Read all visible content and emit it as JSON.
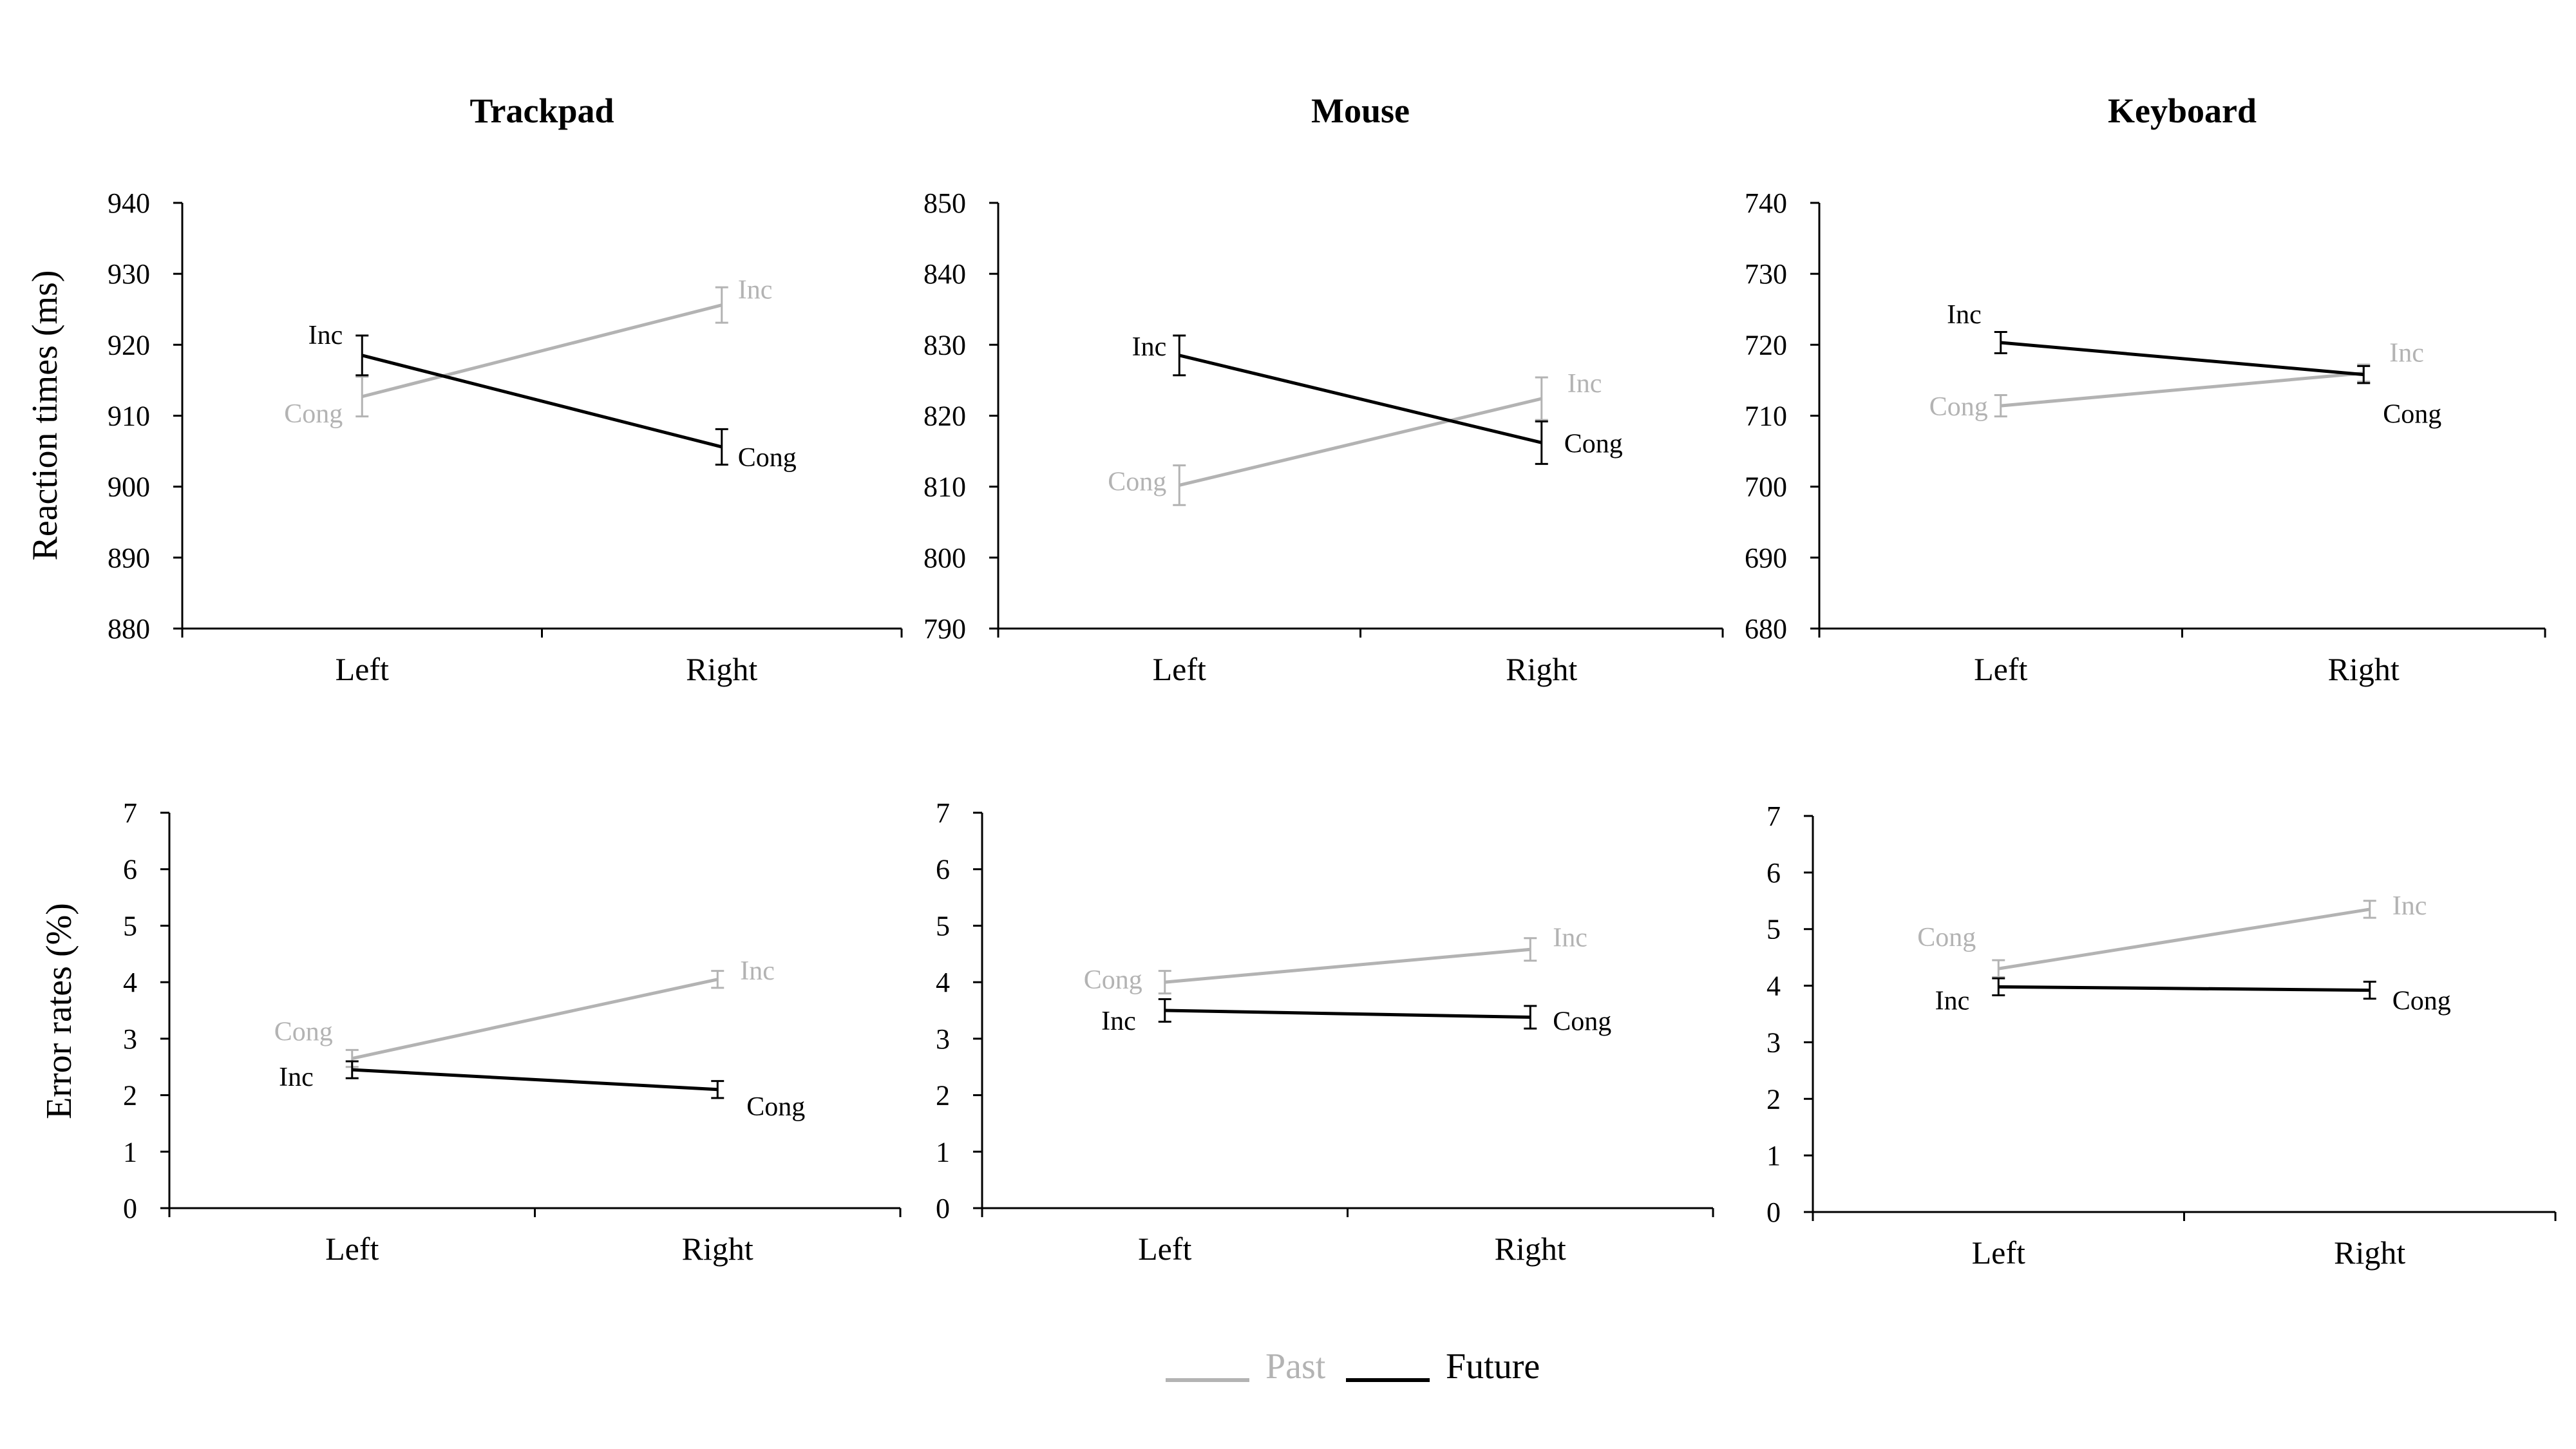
{
  "colors": {
    "past": "#b3b3b3",
    "future": "#000000",
    "axis": "#000000"
  },
  "legend": [
    {
      "name": "Past",
      "color": "#b3b3b3"
    },
    {
      "name": "Future",
      "color": "#000000"
    }
  ],
  "row_labels": [
    "Reaction times (ms)",
    "Error rates (%)"
  ],
  "chart_data": [
    {
      "type": "line",
      "title": "Trackpad",
      "ylabel": "Reaction times (ms)",
      "categories": [
        "Left",
        "Right"
      ],
      "ylim": [
        880,
        940
      ],
      "yticks": [
        880,
        890,
        900,
        910,
        920,
        930,
        940
      ],
      "series": [
        {
          "name": "Past",
          "values": [
            912.7,
            925.6
          ],
          "errors": [
            2.8,
            2.5
          ],
          "point_labels": [
            "Cong",
            "Inc"
          ]
        },
        {
          "name": "Future",
          "values": [
            918.5,
            905.6
          ],
          "errors": [
            2.8,
            2.5
          ],
          "point_labels": [
            "Inc",
            "Cong"
          ]
        }
      ]
    },
    {
      "type": "line",
      "title": "Mouse",
      "ylabel": "",
      "categories": [
        "Left",
        "Right"
      ],
      "ylim": [
        790,
        850
      ],
      "yticks": [
        790,
        800,
        810,
        820,
        830,
        840,
        850
      ],
      "series": [
        {
          "name": "Past",
          "values": [
            810.2,
            822.4
          ],
          "errors": [
            2.8,
            3.0
          ],
          "point_labels": [
            "Cong",
            "Inc"
          ]
        },
        {
          "name": "Future",
          "values": [
            828.5,
            816.2
          ],
          "errors": [
            2.8,
            3.0
          ],
          "point_labels": [
            "Inc",
            "Cong"
          ]
        }
      ]
    },
    {
      "type": "line",
      "title": "Keyboard",
      "ylabel": "",
      "categories": [
        "Left",
        "Right"
      ],
      "ylim": [
        680,
        740
      ],
      "yticks": [
        680,
        690,
        700,
        710,
        720,
        730,
        740
      ],
      "series": [
        {
          "name": "Past",
          "values": [
            711.4,
            716.0
          ],
          "errors": [
            1.5,
            1.2
          ],
          "point_labels": [
            "Cong",
            "Inc"
          ]
        },
        {
          "name": "Future",
          "values": [
            720.3,
            715.8
          ],
          "errors": [
            1.5,
            1.2
          ],
          "point_labels": [
            "Inc",
            "Cong"
          ]
        }
      ]
    },
    {
      "type": "line",
      "title": "",
      "ylabel": "Error rates (%)",
      "categories": [
        "Left",
        "Right"
      ],
      "ylim": [
        0,
        7
      ],
      "yticks": [
        0,
        1,
        2,
        3,
        4,
        5,
        6,
        7
      ],
      "series": [
        {
          "name": "Past",
          "values": [
            2.65,
            4.05
          ],
          "errors": [
            0.15,
            0.15
          ],
          "point_labels": [
            "Cong",
            "Inc"
          ]
        },
        {
          "name": "Future",
          "values": [
            2.45,
            2.1
          ],
          "errors": [
            0.15,
            0.15
          ],
          "point_labels": [
            "Inc",
            "Cong"
          ]
        }
      ]
    },
    {
      "type": "line",
      "title": "",
      "ylabel": "",
      "categories": [
        "Left",
        "Right"
      ],
      "ylim": [
        0,
        7
      ],
      "yticks": [
        0,
        1,
        2,
        3,
        4,
        5,
        6,
        7
      ],
      "series": [
        {
          "name": "Past",
          "values": [
            4.0,
            4.58
          ],
          "errors": [
            0.2,
            0.2
          ],
          "point_labels": [
            "Cong",
            "Inc"
          ]
        },
        {
          "name": "Future",
          "values": [
            3.5,
            3.38
          ],
          "errors": [
            0.2,
            0.2
          ],
          "point_labels": [
            "Inc",
            "Cong"
          ]
        }
      ]
    },
    {
      "type": "line",
      "title": "",
      "ylabel": "",
      "categories": [
        "Left",
        "Right"
      ],
      "ylim": [
        0,
        7
      ],
      "yticks": [
        0,
        1,
        2,
        3,
        4,
        5,
        6,
        7
      ],
      "series": [
        {
          "name": "Past",
          "values": [
            4.3,
            5.35
          ],
          "errors": [
            0.15,
            0.15
          ],
          "point_labels": [
            "Cong",
            "Inc"
          ]
        },
        {
          "name": "Future",
          "values": [
            3.98,
            3.92
          ],
          "errors": [
            0.15,
            0.15
          ],
          "point_labels": [
            "Inc",
            "Cong"
          ]
        }
      ]
    }
  ]
}
